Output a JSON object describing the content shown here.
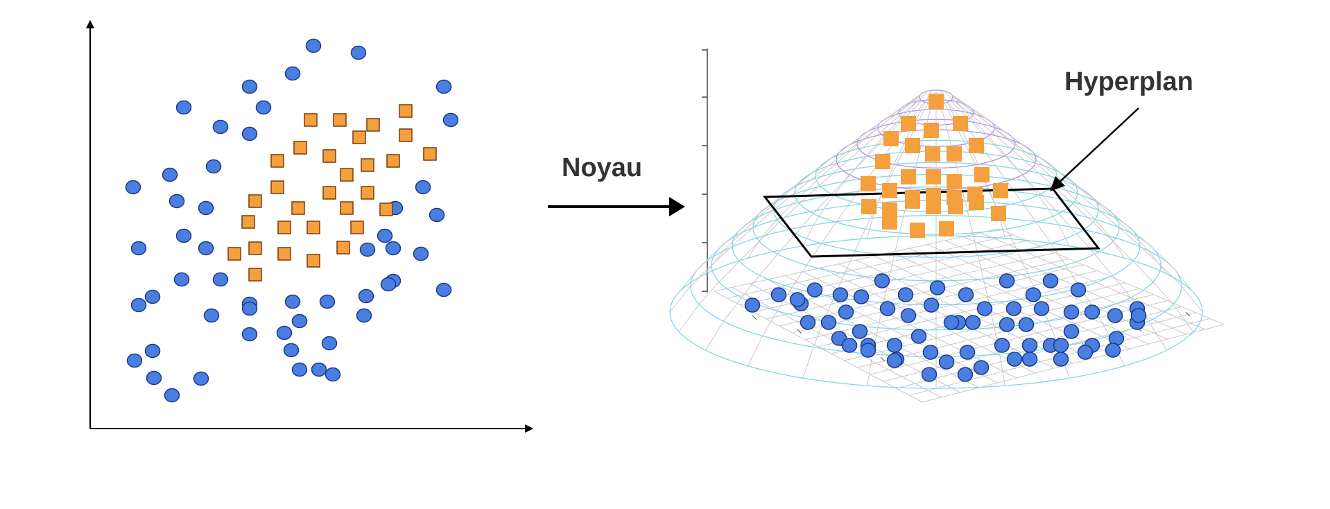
{
  "labels": {
    "kernel": "Noyau",
    "hyperplane": "Hyperplan"
  },
  "colors": {
    "circle_fill": "#4a7ee0",
    "circle_stroke": "#1a3a8a",
    "square_fill": "#f4a03c",
    "square_stroke": "#7a3a10",
    "axis": "#000000",
    "plane": "#000000",
    "mesh_gray": "#c8c8c8",
    "mesh_cyan": "#7fd6ea",
    "mesh_violet": "#b58ae8"
  },
  "icons": {
    "kernel_arrow": "right-arrow-icon",
    "hyperplane_pointer": "diagonal-arrow-icon"
  },
  "left_plot": {
    "points_circles": 52,
    "points_squares": 30
  },
  "right_plot": {
    "points_circles": 62,
    "points_squares": 31
  }
}
